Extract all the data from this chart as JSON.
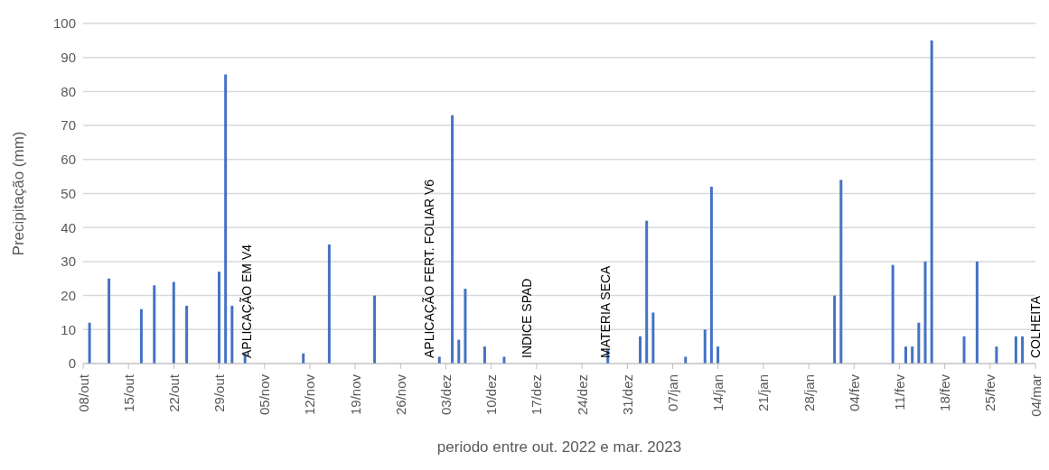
{
  "chart_data": {
    "type": "bar",
    "xlabel": "periodo entre out. 2022 e mar. 2023",
    "ylabel": "Precipitação (mm)",
    "color": "#4472c4",
    "x": [
      "2022-10-09",
      "2022-10-12",
      "2022-10-17",
      "2022-10-19",
      "2022-10-22",
      "2022-10-24",
      "2022-10-29",
      "2022-10-30",
      "2022-10-31",
      "2022-11-02",
      "2022-11-11",
      "2022-11-15",
      "2022-11-22",
      "2022-12-02",
      "2022-12-04",
      "2022-12-05",
      "2022-12-06",
      "2022-12-09",
      "2022-12-12",
      "2022-12-28",
      "2023-01-02",
      "2023-01-03",
      "2023-01-04",
      "2023-01-09",
      "2023-01-12",
      "2023-01-13",
      "2023-01-14",
      "2023-02-01",
      "2023-02-02",
      "2023-02-10",
      "2023-02-12",
      "2023-02-13",
      "2023-02-14",
      "2023-02-15",
      "2023-02-16",
      "2023-02-21",
      "2023-02-23",
      "2023-02-26",
      "2023-03-01",
      "2023-03-02"
    ],
    "values": [
      12,
      25,
      16,
      23,
      24,
      17,
      27,
      85,
      17,
      3,
      3,
      35,
      20,
      2,
      73,
      7,
      22,
      5,
      2,
      4,
      8,
      42,
      15,
      2,
      10,
      52,
      5,
      20,
      54,
      29,
      5,
      5,
      12,
      30,
      95,
      8,
      30,
      5,
      8,
      8
    ],
    "xlim": [
      "2022-10-08",
      "2023-03-04"
    ],
    "xticks": [
      {
        "value": "2022-10-08",
        "label": "08/out"
      },
      {
        "value": "2022-10-15",
        "label": "15/out"
      },
      {
        "value": "2022-10-22",
        "label": "22/out"
      },
      {
        "value": "2022-10-29",
        "label": "29/out"
      },
      {
        "value": "2022-11-05",
        "label": "05/nov"
      },
      {
        "value": "2022-11-12",
        "label": "12/nov"
      },
      {
        "value": "2022-11-19",
        "label": "19/nov"
      },
      {
        "value": "2022-11-26",
        "label": "26/nov"
      },
      {
        "value": "2022-12-03",
        "label": "03/dez"
      },
      {
        "value": "2022-12-10",
        "label": "10/dez"
      },
      {
        "value": "2022-12-17",
        "label": "17/dez"
      },
      {
        "value": "2022-12-24",
        "label": "24/dez"
      },
      {
        "value": "2022-12-31",
        "label": "31/dez"
      },
      {
        "value": "2023-01-07",
        "label": "07/jan"
      },
      {
        "value": "2023-01-14",
        "label": "14/jan"
      },
      {
        "value": "2023-01-21",
        "label": "21/jan"
      },
      {
        "value": "2023-01-28",
        "label": "28/jan"
      },
      {
        "value": "2023-02-04",
        "label": "04/fev"
      },
      {
        "value": "2023-02-11",
        "label": "11/fev"
      },
      {
        "value": "2023-02-18",
        "label": "18/fev"
      },
      {
        "value": "2023-02-25",
        "label": "25/fev"
      },
      {
        "value": "2023-03-04",
        "label": "04/mar"
      }
    ],
    "ylim": [
      0,
      100
    ],
    "yticks": [
      0,
      10,
      20,
      30,
      40,
      50,
      60,
      70,
      80,
      90,
      100
    ],
    "grid": "y",
    "legend": false,
    "annotations": [
      "APLICAÇÃO EM V4",
      "APLICAÇÃO FERT. FOLIAR V6",
      "INDICE SPAD",
      "MATERIA SECA",
      "COLHEITA"
    ]
  }
}
